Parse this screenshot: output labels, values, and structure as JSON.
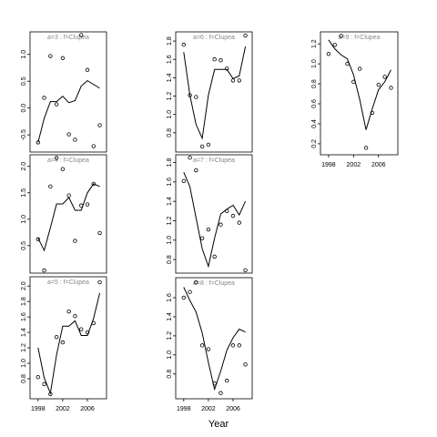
{
  "x_label": "Year",
  "chart_data": [
    {
      "type": "line",
      "title": "a=3  :  f=Clupea",
      "x": [
        1998,
        1999,
        2000,
        2001,
        2002,
        2003,
        2004,
        2005,
        2006,
        2007,
        2008
      ],
      "series": [
        {
          "style": "points",
          "color": "#000000",
          "values": [
            -0.64,
            0.19,
            0.97,
            0.07,
            0.93,
            -0.49,
            -0.59,
            1.36,
            0.71,
            -0.71,
            -0.32
          ]
        },
        {
          "style": "line",
          "color": "#000000",
          "values": [
            -0.64,
            -0.19,
            0.12,
            0.12,
            0.22,
            0.1,
            0.14,
            0.41,
            0.51,
            0.44,
            0.37
          ]
        }
      ],
      "xlim": [
        1996.7,
        2009.1
      ],
      "ylim": [
        -0.82,
        1.42
      ],
      "yticks": [
        {
          "value": 1,
          "label": "1.0"
        },
        0.5,
        {
          "value": 0,
          "label": "0.0"
        },
        -0.5
      ]
    },
    {
      "type": "line",
      "title": "a=4  :  f=Clupea",
      "x": [
        1998,
        1999,
        2000,
        2001,
        2002,
        2003,
        2004,
        2005,
        2006,
        2007,
        2008
      ],
      "series": [
        {
          "style": "points",
          "color": "#000000",
          "values": [
            0.62,
            0.03,
            1.62,
            2.16,
            1.95,
            1.45,
            0.59,
            1.26,
            1.28,
            1.67,
            0.74
          ]
        },
        {
          "style": "line",
          "color": "#000000",
          "values": [
            0.64,
            0.41,
            0.84,
            1.29,
            1.29,
            1.41,
            1.17,
            1.17,
            1.5,
            1.67,
            1.62
          ]
        }
      ],
      "xlim": [
        1996.7,
        2009.1
      ],
      "ylim": [
        -0.02,
        2.22
      ],
      "yticks": [
        {
          "value": 2,
          "label": "2.0"
        },
        1.5,
        {
          "value": 1,
          "label": "1.0"
        },
        0.5
      ]
    },
    {
      "type": "line",
      "title": "a=5  :  f=Clupea",
      "x": [
        1998,
        1999,
        2000,
        2001,
        2002,
        2003,
        2004,
        2005,
        2006,
        2007,
        2008
      ],
      "series": [
        {
          "style": "points",
          "color": "#000000",
          "values": [
            0.82,
            0.73,
            0.6,
            1.34,
            1.27,
            1.67,
            1.61,
            1.44,
            1.4,
            1.52,
            2.05
          ]
        },
        {
          "style": "line",
          "color": "#000000",
          "values": [
            1.2,
            0.81,
            0.61,
            1.11,
            1.48,
            1.48,
            1.55,
            1.36,
            1.36,
            1.58,
            1.91
          ]
        }
      ],
      "xlim": [
        1996.7,
        2009.1
      ],
      "ylim": [
        0.54,
        2.12
      ],
      "yticks": [
        {
          "value": 2,
          "label": "2.0"
        },
        1.8,
        1.6,
        1.4,
        1.2,
        {
          "value": 1,
          "label": "1.0"
        },
        0.8
      ],
      "xticks": [
        1998,
        2002,
        2006
      ]
    },
    {
      "type": "line",
      "title": "a=6  :  f=Clupea",
      "x": [
        1998,
        1999,
        2000,
        2001,
        2002,
        2003,
        2004,
        2005,
        2006,
        2007,
        2008
      ],
      "series": [
        {
          "style": "points",
          "color": "#000000",
          "values": [
            1.76,
            1.21,
            1.19,
            0.65,
            0.67,
            1.6,
            1.59,
            1.5,
            1.37,
            1.37,
            1.86
          ]
        },
        {
          "style": "line",
          "color": "#000000",
          "values": [
            1.68,
            1.21,
            0.89,
            0.74,
            1.21,
            1.49,
            1.49,
            1.49,
            1.39,
            1.42,
            1.74
          ]
        }
      ],
      "xlim": [
        1996.7,
        2009.1
      ],
      "ylim": [
        0.59,
        1.9
      ],
      "yticks": [
        1.8,
        1.6,
        1.4,
        1.2,
        {
          "value": 1,
          "label": "1.0"
        },
        0.8
      ]
    },
    {
      "type": "line",
      "title": "a=7  :  f=Clupea",
      "x": [
        1998,
        1999,
        2000,
        2001,
        2002,
        2003,
        2004,
        2005,
        2006,
        2007,
        2008
      ],
      "series": [
        {
          "style": "points",
          "color": "#000000",
          "values": [
            1.61,
            1.85,
            1.72,
            1.02,
            1.11,
            0.83,
            1.16,
            1.3,
            1.25,
            1.18,
            0.69
          ]
        },
        {
          "style": "line",
          "color": "#000000",
          "values": [
            1.7,
            1.55,
            1.23,
            0.91,
            0.73,
            1.02,
            1.27,
            1.32,
            1.36,
            1.26,
            1.4
          ]
        }
      ],
      "xlim": [
        1996.7,
        2009.1
      ],
      "ylim": [
        0.66,
        1.88
      ],
      "yticks": [
        1.8,
        1.6,
        1.4,
        1.2,
        {
          "value": 1,
          "label": "1.0"
        },
        0.8
      ]
    },
    {
      "type": "line",
      "title": "a=8  :  f=Clupea",
      "x": [
        1998,
        1999,
        2000,
        2001,
        2002,
        2003,
        2004,
        2005,
        2006,
        2007,
        2008
      ],
      "series": [
        {
          "style": "points",
          "color": "#000000",
          "values": [
            1.6,
            1.66,
            1.76,
            1.1,
            1.06,
            0.7,
            0.6,
            0.73,
            1.1,
            1.1,
            0.9
          ]
        },
        {
          "style": "line",
          "color": "#000000",
          "values": [
            1.71,
            1.57,
            1.45,
            1.23,
            0.92,
            0.64,
            0.83,
            1.05,
            1.18,
            1.27,
            1.24
          ]
        }
      ],
      "xlim": [
        1996.7,
        2009.1
      ],
      "ylim": [
        0.54,
        1.81
      ],
      "yticks": [
        1.6,
        1.4,
        1.2,
        {
          "value": 1,
          "label": "1.0"
        },
        0.8
      ],
      "xticks": [
        1998,
        2002,
        2006
      ]
    },
    {
      "type": "line",
      "title": "a=9  :  f=Clupea",
      "x": [
        1998,
        1999,
        2000,
        2001,
        2002,
        2003,
        2004,
        2005,
        2006,
        2007,
        2008
      ],
      "series": [
        {
          "style": "points",
          "color": "#000000",
          "values": [
            1.1,
            1.19,
            1.28,
            1.0,
            0.82,
            0.95,
            0.16,
            0.51,
            0.79,
            0.87,
            0.76
          ]
        },
        {
          "style": "line",
          "color": "#000000",
          "values": [
            1.24,
            1.15,
            1.09,
            1.05,
            0.89,
            0.64,
            0.34,
            0.55,
            0.74,
            0.82,
            0.94
          ]
        }
      ],
      "xlim": [
        1996.7,
        2009.1
      ],
      "ylim": [
        0.09,
        1.32
      ],
      "yticks": [
        1.2,
        {
          "value": 1,
          "label": "1.0"
        },
        0.8,
        0.6,
        0.4,
        0.2
      ],
      "xticks": [
        1998,
        2002,
        2006
      ]
    }
  ]
}
